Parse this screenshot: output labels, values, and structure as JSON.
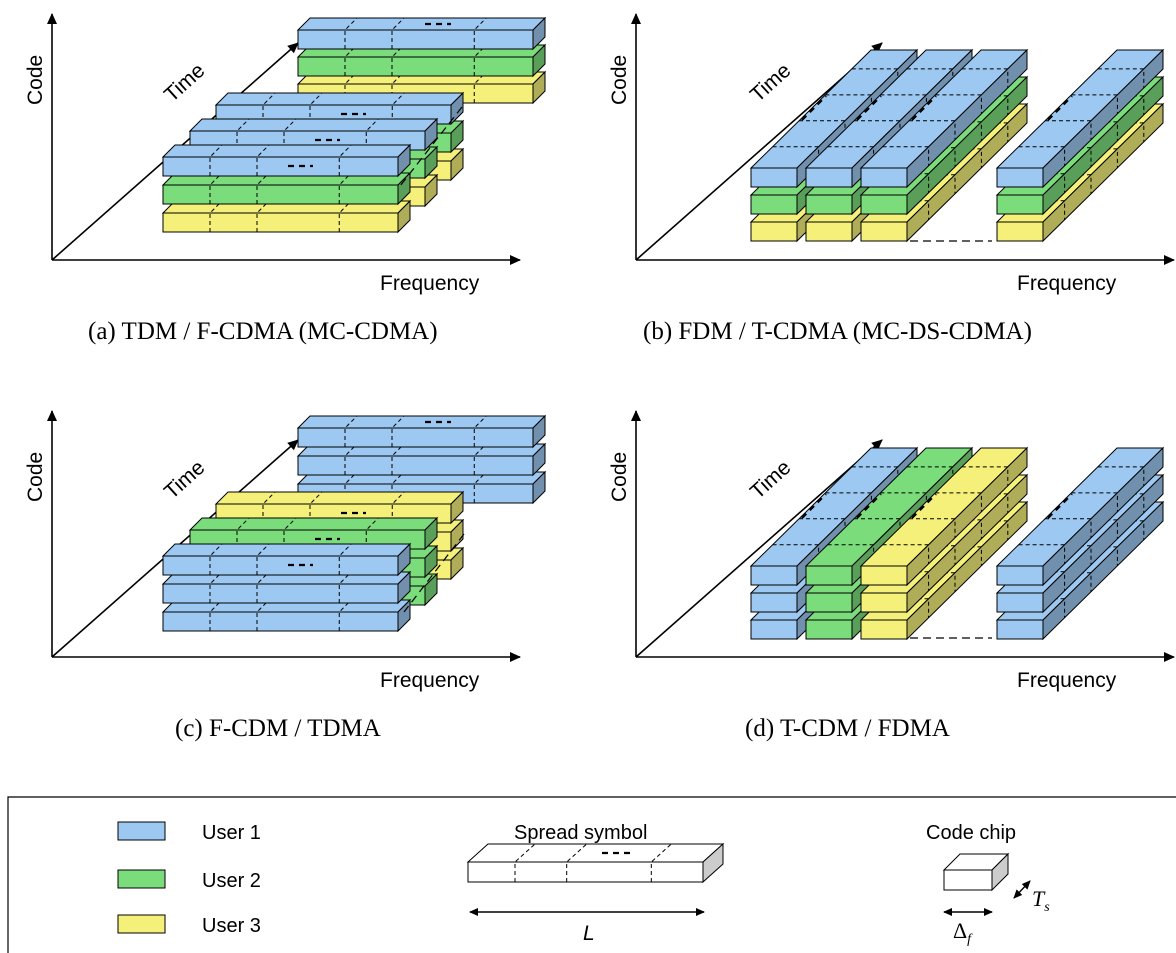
{
  "colors": {
    "user1": "#9cc8f2",
    "user2": "#7bdc7b",
    "user3": "#f5f07a"
  },
  "axes": {
    "code": "Code",
    "time": "Time",
    "frequency": "Frequency"
  },
  "panels": [
    {
      "id": "a",
      "caption": "(a)  TDM / F-CDMA (MC-CDMA)"
    },
    {
      "id": "b",
      "caption": "(b)  FDM / T-CDMA (MC-DS-CDMA)"
    },
    {
      "id": "c",
      "caption": "(c)  F-CDM / TDMA"
    },
    {
      "id": "d",
      "caption": "(d)  T-CDM / FDMA"
    }
  ],
  "legend": {
    "users": [
      {
        "label": "User 1",
        "color_key": "user1"
      },
      {
        "label": "User 2",
        "color_key": "user2"
      },
      {
        "label": "User 3",
        "color_key": "user3"
      }
    ],
    "spread_symbol": {
      "title": "Spread symbol",
      "length_label": "L"
    },
    "code_chip": {
      "title": "Code chip",
      "ts_label": "T",
      "ts_sub": "s",
      "df_label": "Δ",
      "df_sub": "f"
    }
  }
}
